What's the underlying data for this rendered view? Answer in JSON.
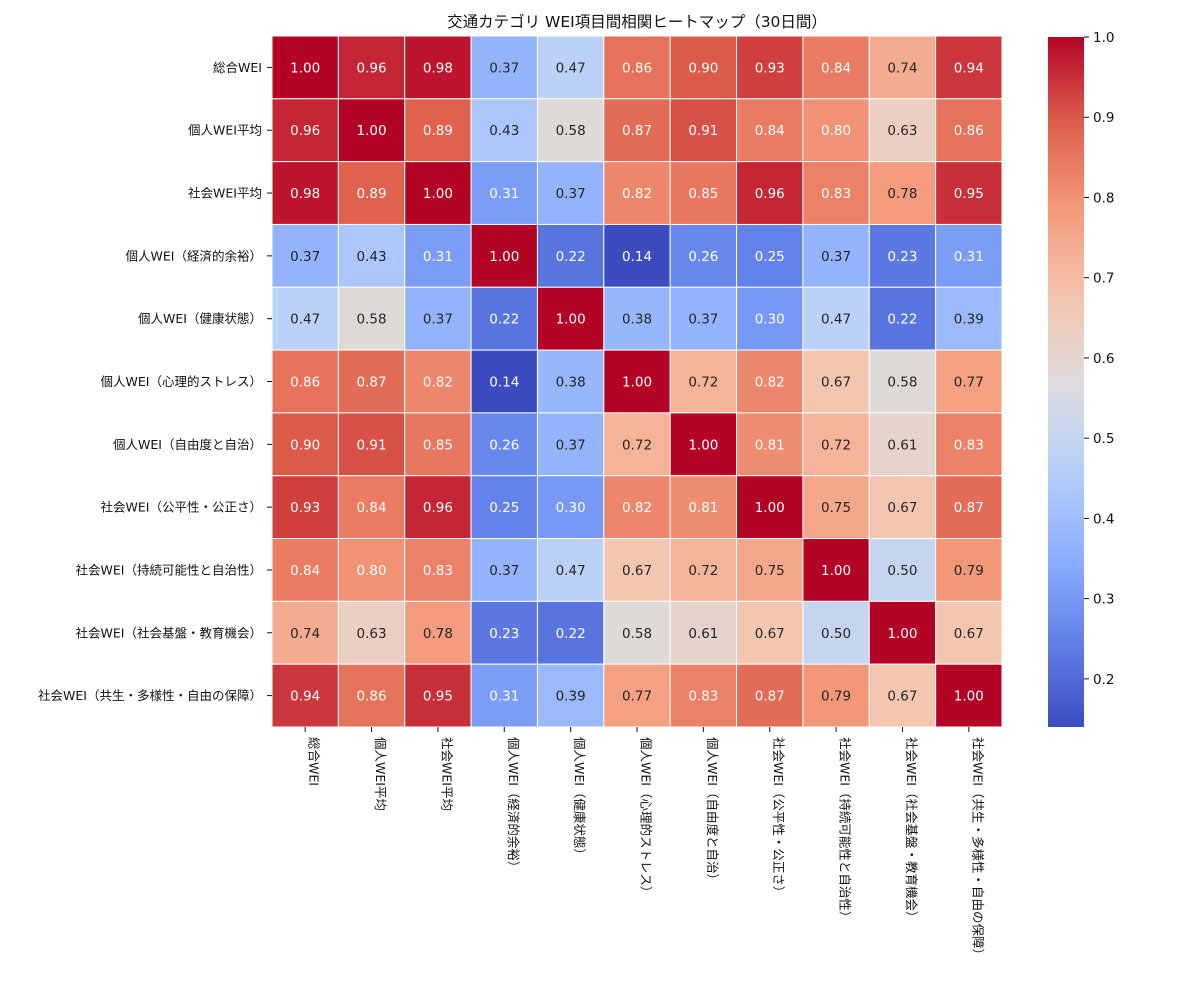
{
  "chart_data": {
    "type": "heatmap",
    "title": "交通カテゴリ WEI項目間相関ヒートマップ（30日間）",
    "labels": [
      "総合WEI",
      "個人WEI平均",
      "社会WEI平均",
      "個人WEI（経済的余裕）",
      "個人WEI（健康状態）",
      "個人WEI（心理的ストレス）",
      "個人WEI（自由度と自治）",
      "社会WEI（公平性・公正さ）",
      "社会WEI（持続可能性と自治性）",
      "社会WEI（社会基盤・教育機会）",
      "社会WEI（共生・多様性・自由の保障）"
    ],
    "matrix": [
      [
        1.0,
        0.96,
        0.98,
        0.37,
        0.47,
        0.86,
        0.9,
        0.93,
        0.84,
        0.74,
        0.94
      ],
      [
        0.96,
        1.0,
        0.89,
        0.43,
        0.58,
        0.87,
        0.91,
        0.84,
        0.8,
        0.63,
        0.86
      ],
      [
        0.98,
        0.89,
        1.0,
        0.31,
        0.37,
        0.82,
        0.85,
        0.96,
        0.83,
        0.78,
        0.95
      ],
      [
        0.37,
        0.43,
        0.31,
        1.0,
        0.22,
        0.14,
        0.26,
        0.25,
        0.37,
        0.23,
        0.31
      ],
      [
        0.47,
        0.58,
        0.37,
        0.22,
        1.0,
        0.38,
        0.37,
        0.3,
        0.47,
        0.22,
        0.39
      ],
      [
        0.86,
        0.87,
        0.82,
        0.14,
        0.38,
        1.0,
        0.72,
        0.82,
        0.67,
        0.58,
        0.77
      ],
      [
        0.9,
        0.91,
        0.85,
        0.26,
        0.37,
        0.72,
        1.0,
        0.81,
        0.72,
        0.61,
        0.83
      ],
      [
        0.93,
        0.84,
        0.96,
        0.25,
        0.3,
        0.82,
        0.81,
        1.0,
        0.75,
        0.67,
        0.87
      ],
      [
        0.84,
        0.8,
        0.83,
        0.37,
        0.47,
        0.67,
        0.72,
        0.75,
        1.0,
        0.5,
        0.79
      ],
      [
        0.74,
        0.63,
        0.78,
        0.23,
        0.22,
        0.58,
        0.61,
        0.67,
        0.5,
        1.0,
        0.67
      ],
      [
        0.94,
        0.86,
        0.95,
        0.31,
        0.39,
        0.77,
        0.83,
        0.87,
        0.79,
        0.67,
        1.0
      ]
    ],
    "value_format": "0.00",
    "colormap": "coolwarm",
    "color_range": [
      0.14,
      1.0
    ],
    "colorbar": {
      "ticks": [
        "0.2",
        "0.3",
        "0.4",
        "0.5",
        "0.6",
        "0.7",
        "0.8",
        "0.9",
        "1.0"
      ],
      "placement": "right"
    },
    "colors": {
      "low": "#3b4cc0",
      "mid": "#dddcdc",
      "high": "#b40426",
      "grid": "#ffffff"
    },
    "x_tick_rotation": "vertical",
    "grid": false
  }
}
